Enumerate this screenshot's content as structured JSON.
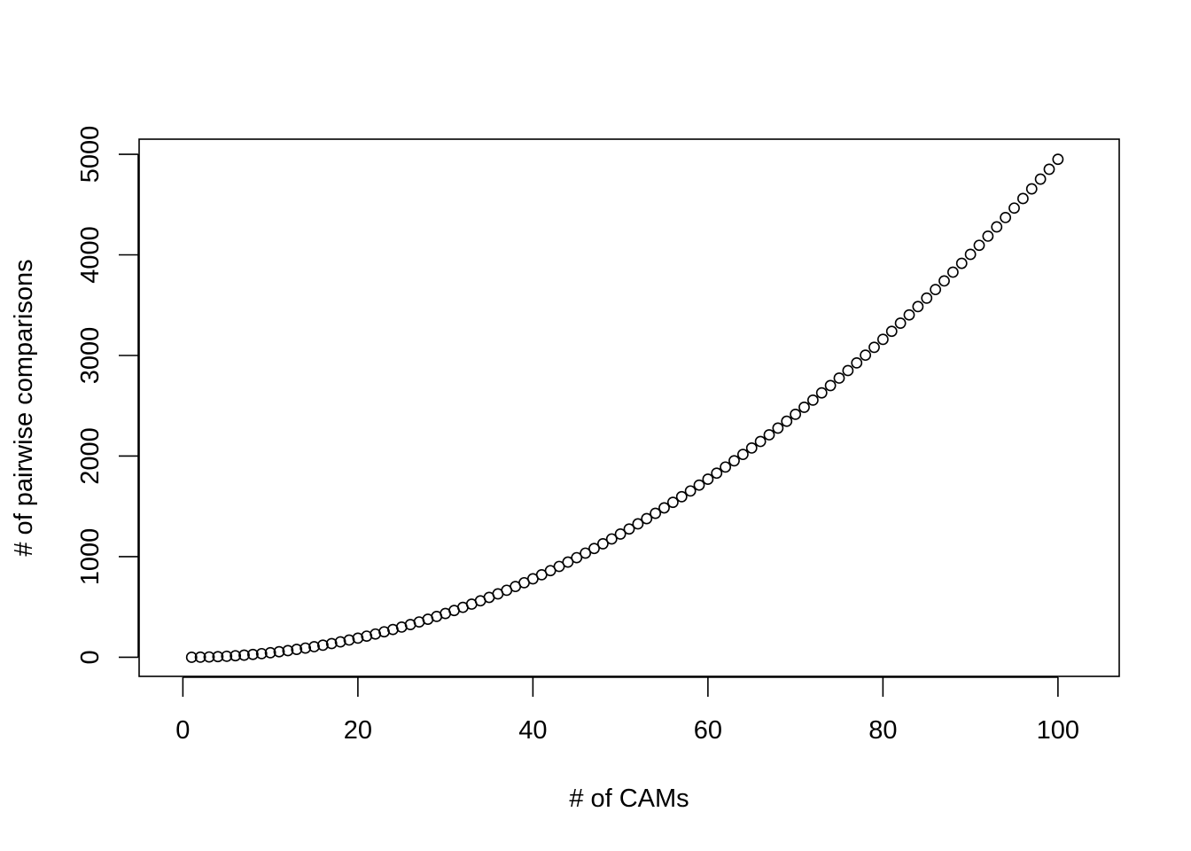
{
  "chart_data": {
    "type": "scatter",
    "title": "",
    "xlabel": "# of CAMs",
    "ylabel": "# of pairwise comparisons",
    "xlim": [
      -5,
      107
    ],
    "ylim": [
      -190,
      5150
    ],
    "x_ticks": [
      0,
      20,
      40,
      60,
      80,
      100
    ],
    "x_tick_labels": [
      "0",
      "20",
      "40",
      "60",
      "80",
      "100"
    ],
    "y_ticks": [
      0,
      1000,
      2000,
      3000,
      4000,
      5000
    ],
    "y_tick_labels": [
      "0",
      "1000",
      "2000",
      "3000",
      "4000",
      "5000"
    ],
    "grid": false,
    "legend": "none",
    "marker": "open-circle",
    "color": "#000000",
    "series": [
      {
        "x": [
          1,
          2,
          3,
          4,
          5,
          6,
          7,
          8,
          9,
          10,
          11,
          12,
          13,
          14,
          15,
          16,
          17,
          18,
          19,
          20,
          21,
          22,
          23,
          24,
          25,
          26,
          27,
          28,
          29,
          30,
          31,
          32,
          33,
          34,
          35,
          36,
          37,
          38,
          39,
          40,
          41,
          42,
          43,
          44,
          45,
          46,
          47,
          48,
          49,
          50,
          51,
          52,
          53,
          54,
          55,
          56,
          57,
          58,
          59,
          60,
          61,
          62,
          63,
          64,
          65,
          66,
          67,
          68,
          69,
          70,
          71,
          72,
          73,
          74,
          75,
          76,
          77,
          78,
          79,
          80,
          81,
          82,
          83,
          84,
          85,
          86,
          87,
          88,
          89,
          90,
          91,
          92,
          93,
          94,
          95,
          96,
          97,
          98,
          99,
          100
        ],
        "y": [
          0,
          1,
          3,
          6,
          10,
          15,
          21,
          28,
          36,
          45,
          55,
          66,
          78,
          91,
          105,
          120,
          136,
          153,
          171,
          190,
          210,
          231,
          253,
          276,
          300,
          325,
          351,
          378,
          406,
          435,
          465,
          496,
          528,
          561,
          595,
          630,
          666,
          703,
          741,
          780,
          820,
          861,
          903,
          946,
          990,
          1035,
          1081,
          1128,
          1176,
          1225,
          1275,
          1326,
          1378,
          1431,
          1485,
          1540,
          1596,
          1653,
          1711,
          1770,
          1830,
          1891,
          1953,
          2016,
          2080,
          2145,
          2211,
          2278,
          2346,
          2415,
          2485,
          2556,
          2628,
          2701,
          2775,
          2850,
          2926,
          3003,
          3081,
          3160,
          3240,
          3321,
          3403,
          3486,
          3570,
          3655,
          3741,
          3828,
          3916,
          4005,
          4095,
          4186,
          4278,
          4371,
          4465,
          4560,
          4656,
          4753,
          4851,
          4950
        ]
      }
    ]
  }
}
